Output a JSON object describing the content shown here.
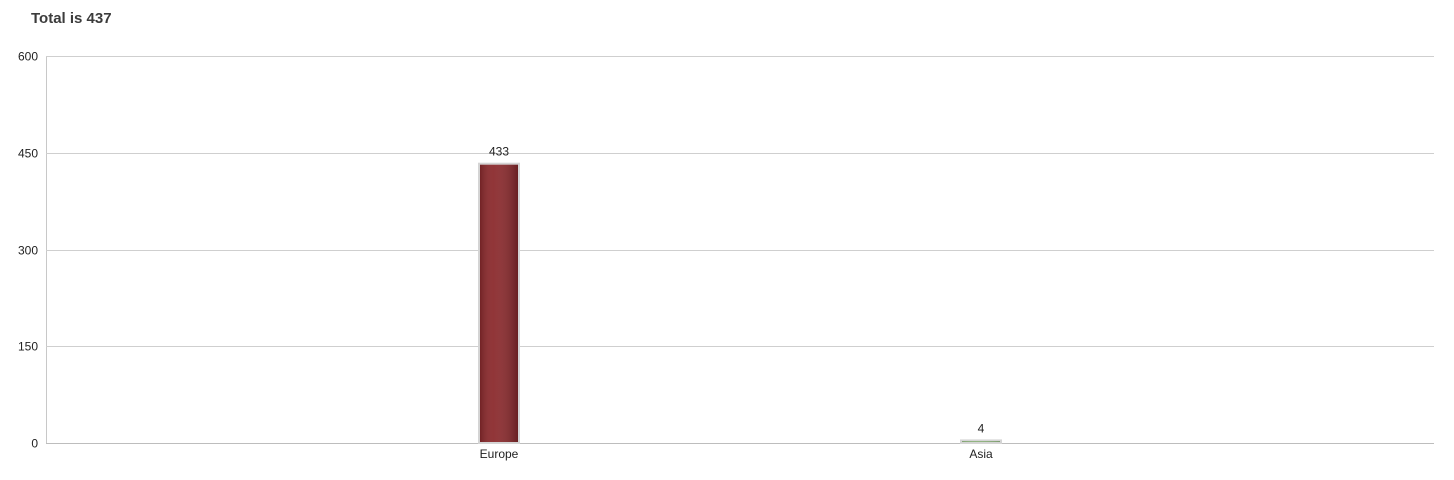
{
  "chart_data": {
    "type": "bar",
    "title": "Total is 437",
    "xlabel": "",
    "ylabel": "",
    "categories": [
      "Europe",
      "Asia"
    ],
    "values": [
      433,
      4
    ],
    "data_labels": [
      "433",
      "4"
    ],
    "bar_colors": [
      "#8b2a2d",
      "#5a9a3c"
    ],
    "ylim": [
      0,
      600
    ],
    "yticks": [
      0,
      150,
      300,
      450,
      600
    ],
    "ytick_labels": [
      "0",
      "150",
      "300",
      "450",
      "600"
    ],
    "grid": true,
    "legend": "none"
  }
}
